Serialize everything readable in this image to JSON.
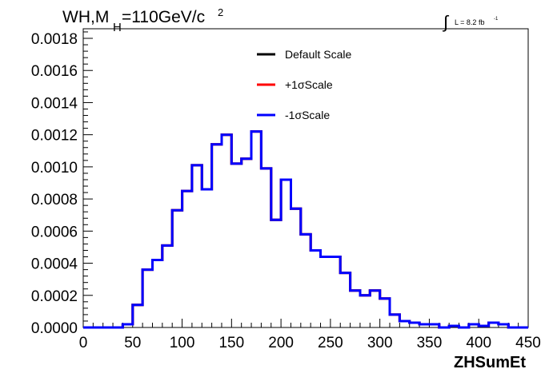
{
  "chart_data": {
    "type": "line",
    "title": {
      "main": "WH,M",
      "sub": "H",
      "tail": "=110GeV/c",
      "sup": "2"
    },
    "lumi": {
      "symbol": "∫",
      "text": "L = 8.2 fb",
      "sup": "-1"
    },
    "xlabel": "ZHSumEt",
    "ylabel": "",
    "xlim": [
      0,
      450
    ],
    "ylim": [
      0,
      0.0018
    ],
    "xticks": [
      "0",
      "50",
      "100",
      "150",
      "200",
      "250",
      "300",
      "350",
      "400",
      "450"
    ],
    "yticks": [
      "0.0000",
      "0.0002",
      "0.0004",
      "0.0006",
      "0.0008",
      "0.0010",
      "0.0012",
      "0.0014",
      "0.0016",
      "0.0018"
    ],
    "legend": {
      "placement": "top-center",
      "entries": [
        {
          "label": "Default Scale",
          "color": "#000000"
        },
        {
          "label": "+1σScale",
          "color": "#ff0000"
        },
        {
          "label": "-1σScale",
          "color": "#0000ff"
        }
      ]
    },
    "bin_width": 10,
    "bin_edges_start": 0,
    "series": [
      {
        "name": "Default Scale",
        "color": "#000000",
        "values": [
          0,
          0,
          0,
          0,
          2e-05,
          0.00014,
          0.00036,
          0.00042,
          0.00051,
          0.00073,
          0.00085,
          0.00101,
          0.00086,
          0.00114,
          0.0012,
          0.00102,
          0.00105,
          0.00122,
          0.00099,
          0.00067,
          0.00092,
          0.00074,
          0.00058,
          0.00048,
          0.00044,
          0.00044,
          0.00034,
          0.00023,
          0.0002,
          0.00023,
          0.00018,
          8e-05,
          4e-05,
          3e-05,
          2e-05,
          2e-05,
          0.0,
          1e-05,
          0.0,
          2e-05,
          1e-05,
          3e-05,
          2e-05,
          0.0,
          0.0
        ]
      },
      {
        "name": "+1σScale",
        "color": "#ff0000",
        "values": [
          0,
          0,
          0,
          0,
          2e-05,
          0.00014,
          0.00036,
          0.00042,
          0.00051,
          0.00073,
          0.00085,
          0.00101,
          0.00086,
          0.00114,
          0.0012,
          0.00102,
          0.00105,
          0.00122,
          0.00099,
          0.00067,
          0.00092,
          0.00074,
          0.00058,
          0.00048,
          0.00044,
          0.00044,
          0.00034,
          0.00023,
          0.0002,
          0.00023,
          0.00018,
          8e-05,
          4e-05,
          3e-05,
          2e-05,
          2e-05,
          0.0,
          1e-05,
          0.0,
          2e-05,
          1e-05,
          3e-05,
          2e-05,
          0.0,
          0.0
        ]
      },
      {
        "name": "-1σScale",
        "color": "#0000ff",
        "values": [
          0,
          0,
          0,
          0,
          2e-05,
          0.00014,
          0.00036,
          0.00042,
          0.00051,
          0.00073,
          0.00085,
          0.00101,
          0.00086,
          0.00114,
          0.0012,
          0.00102,
          0.00105,
          0.00122,
          0.00099,
          0.00067,
          0.00092,
          0.00074,
          0.00058,
          0.00048,
          0.00044,
          0.00044,
          0.00034,
          0.00023,
          0.0002,
          0.00023,
          0.00018,
          8e-05,
          4e-05,
          3e-05,
          2e-05,
          2e-05,
          0.0,
          1e-05,
          0.0,
          2e-05,
          1e-05,
          3e-05,
          2e-05,
          0.0,
          0.0
        ]
      }
    ]
  }
}
